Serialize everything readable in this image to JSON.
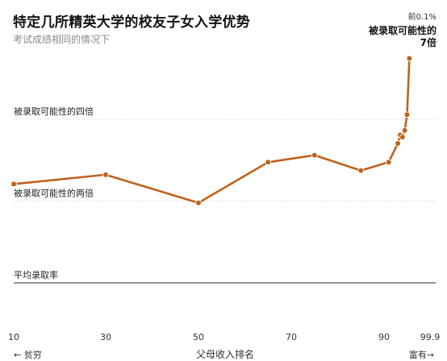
{
  "chart_data": {
    "type": "line",
    "title": "特定几所精英大学的校友子女入学优势",
    "subtitle": "考试成绩相同的情况下",
    "xlabel": "父母收入排名",
    "x_left_label": "← 贫穷",
    "x_right_label": "富有→",
    "x_tick_labels": [
      "10",
      "30",
      "50",
      "70",
      "90",
      "99.9"
    ],
    "y_scale": "ratio",
    "reference_lines": [
      {
        "value": 1,
        "label": "平均录取率",
        "style": "solid"
      },
      {
        "value": 2,
        "label": "被录取可能性的两倍",
        "style": "dotted"
      },
      {
        "value": 4,
        "label": "被录取可能性的四倍",
        "style": "dotted"
      }
    ],
    "annotation": {
      "line1": "前0.1%",
      "line2": "被录取可能性的",
      "line3": "7倍"
    },
    "series": [
      {
        "color": "#c0611d",
        "points": [
          {
            "pos": 0,
            "y": 2.31
          },
          {
            "pos": 1,
            "y": 2.5
          },
          {
            "pos": 2,
            "y": 1.97
          },
          {
            "pos": 2.75,
            "y": 2.78
          },
          {
            "pos": 3.25,
            "y": 2.95
          },
          {
            "pos": 3.75,
            "y": 2.59
          },
          {
            "pos": 4.1,
            "y": 2.78
          },
          {
            "pos": 4.3,
            "y": 3.26
          },
          {
            "pos": 4.35,
            "y": 3.5
          },
          {
            "pos": 4.4,
            "y": 3.44
          },
          {
            "pos": 4.45,
            "y": 3.64
          },
          {
            "pos": 4.5,
            "y": 4.16
          },
          {
            "pos": 4.55,
            "y": 6.7
          }
        ]
      }
    ]
  },
  "colors": {
    "line": "#c0611d",
    "reference": "#999999",
    "baseline": "#555555",
    "text": "#222222"
  }
}
